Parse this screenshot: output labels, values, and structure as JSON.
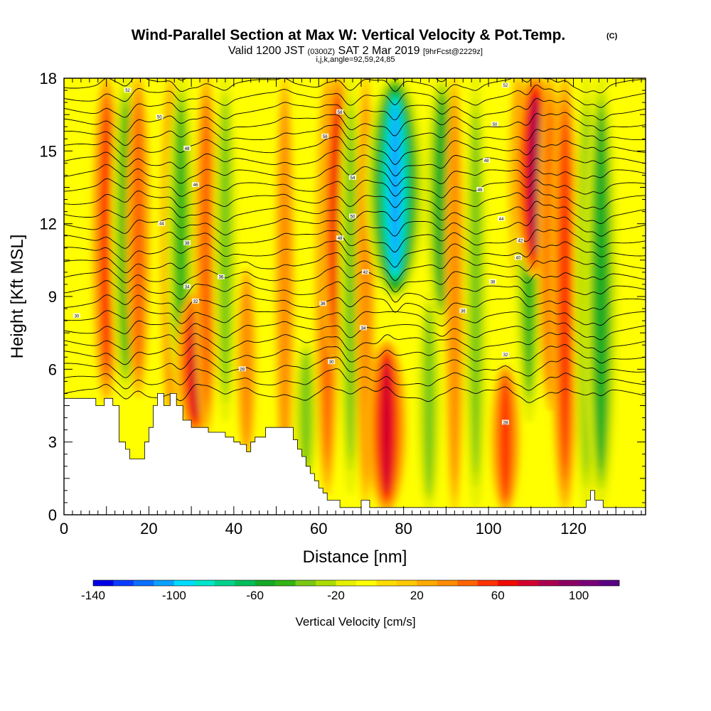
{
  "title": {
    "main": "Wind-Parallel Section at Max W: Vertical Velocity & Pot.Temp.",
    "main_mark": "(C)",
    "valid_prefix": "Valid 1200 JST",
    "valid_utc": "(0300Z)",
    "valid_date": "SAT 2 Mar 2019",
    "forecast": "[9hrFcst@2229z]",
    "indices": "i,j,k,angle=92,59,24,85"
  },
  "chart_data": {
    "type": "heatmap",
    "xlabel": "Distance [nm]",
    "ylabel": "Height [Kft MSL]",
    "xlim": [
      0,
      137
    ],
    "ylim": [
      0,
      18
    ],
    "x_ticks": [
      0,
      20,
      40,
      60,
      80,
      100,
      120
    ],
    "y_ticks": [
      0,
      3,
      6,
      9,
      12,
      15,
      18
    ],
    "grid": false,
    "colorbar": {
      "label": "Vertical Velocity [cm/s]",
      "range": [
        -140,
        120
      ],
      "step": 10,
      "tick_values": [
        -140,
        -100,
        -60,
        -20,
        20,
        60,
        100
      ],
      "tick_labels": [
        "-140",
        "-100",
        "-60",
        "-20",
        "20",
        "60",
        "100"
      ],
      "colors": [
        "#0000e6",
        "#0a3cff",
        "#0a6eff",
        "#0aa0ff",
        "#00dcff",
        "#00e6c8",
        "#00d28c",
        "#00be5a",
        "#14aa28",
        "#32b414",
        "#78c814",
        "#aadc00",
        "#e6f000",
        "#ffff00",
        "#ffdc00",
        "#ffc800",
        "#ffaa00",
        "#ff8c00",
        "#ff6400",
        "#ff3200",
        "#f00a00",
        "#d2002d",
        "#aa0050",
        "#8c0064",
        "#780078",
        "#5a0082"
      ]
    },
    "velocity_features": [
      {
        "x": 10,
        "z_low": 4.8,
        "z_high": 18,
        "w": 50
      },
      {
        "x": 14.5,
        "z_low": 5,
        "z_high": 18,
        "w": -55
      },
      {
        "x": 17.5,
        "z_low": 5,
        "z_high": 18,
        "w": 45
      },
      {
        "x": 25,
        "z_low": 3.8,
        "z_high": 18,
        "w": 30
      },
      {
        "x": 27.5,
        "z_low": 5,
        "z_high": 18,
        "w": -50
      },
      {
        "x": 31,
        "z_low": 3.5,
        "z_high": 9,
        "w": 70
      },
      {
        "x": 33.5,
        "z_low": 3.5,
        "z_high": 18,
        "w": 40
      },
      {
        "x": 38,
        "z_low": 4,
        "z_high": 18,
        "w": -45
      },
      {
        "x": 43,
        "z_low": 2.6,
        "z_high": 10,
        "w": 35
      },
      {
        "x": 52,
        "z_low": 1.5,
        "z_high": 18,
        "w": 30
      },
      {
        "x": 57,
        "z_low": 1.5,
        "z_high": 7,
        "w": -40
      },
      {
        "x": 62,
        "z_low": 1,
        "z_high": 18,
        "w": 45
      },
      {
        "x": 64.5,
        "z_low": 6,
        "z_high": 18,
        "w": 65
      },
      {
        "x": 67.5,
        "z_low": 1,
        "z_high": 18,
        "w": -45
      },
      {
        "x": 71,
        "z_low": 0.5,
        "z_high": 18,
        "w": 30
      },
      {
        "x": 76,
        "z_low": 0.3,
        "z_high": 7,
        "w": 70
      },
      {
        "x": 78,
        "z_low": 9,
        "z_high": 18,
        "w": -110
      },
      {
        "x": 86,
        "z_low": 0.3,
        "z_high": 9,
        "w": -45
      },
      {
        "x": 89,
        "z_low": 8,
        "z_high": 18,
        "w": -60
      },
      {
        "x": 92,
        "z_low": 0.3,
        "z_high": 18,
        "w": 35
      },
      {
        "x": 97,
        "z_low": 0.3,
        "z_high": 18,
        "w": -40
      },
      {
        "x": 104,
        "z_low": 0.3,
        "z_high": 6,
        "w": 55
      },
      {
        "x": 107,
        "z_low": 9,
        "z_high": 18,
        "w": 30
      },
      {
        "x": 109.5,
        "z_low": 4,
        "z_high": 18,
        "w": -50
      },
      {
        "x": 111,
        "z_low": 10,
        "z_high": 18,
        "w": 85
      },
      {
        "x": 114.5,
        "z_low": 4.5,
        "z_high": 18,
        "w": 45
      },
      {
        "x": 118,
        "z_low": 0.3,
        "z_high": 18,
        "w": 55
      },
      {
        "x": 123,
        "z_low": 0.3,
        "z_high": 18,
        "w": -40
      },
      {
        "x": 126.5,
        "z_low": 0.5,
        "z_high": 18,
        "w": -60
      }
    ],
    "terrain": [
      [
        0,
        4.8
      ],
      [
        7.5,
        4.8
      ],
      [
        7.5,
        4.5
      ],
      [
        9.5,
        4.5
      ],
      [
        9.5,
        4.8
      ],
      [
        11.5,
        4.8
      ],
      [
        11.5,
        4.5
      ],
      [
        13,
        4.5
      ],
      [
        13,
        3
      ],
      [
        14.5,
        3
      ],
      [
        14.5,
        2.7
      ],
      [
        15.5,
        2.7
      ],
      [
        15.5,
        2.3
      ],
      [
        19,
        2.3
      ],
      [
        19,
        3
      ],
      [
        20,
        3
      ],
      [
        20,
        3.6
      ],
      [
        21,
        3.6
      ],
      [
        21,
        4.5
      ],
      [
        22,
        4.5
      ],
      [
        22,
        5
      ],
      [
        23.5,
        5
      ],
      [
        23.5,
        4.5
      ],
      [
        25,
        4.5
      ],
      [
        25,
        5
      ],
      [
        26.5,
        5
      ],
      [
        26.5,
        4.5
      ],
      [
        28,
        4.5
      ],
      [
        28,
        3.9
      ],
      [
        30,
        3.9
      ],
      [
        30,
        3.6
      ],
      [
        34,
        3.6
      ],
      [
        34,
        3.4
      ],
      [
        38,
        3.4
      ],
      [
        38,
        3.2
      ],
      [
        40,
        3.2
      ],
      [
        40,
        3
      ],
      [
        41.5,
        3
      ],
      [
        41.5,
        2.9
      ],
      [
        43,
        2.9
      ],
      [
        43,
        2.6
      ],
      [
        44,
        2.6
      ],
      [
        44,
        3
      ],
      [
        45,
        3
      ],
      [
        45,
        3.2
      ],
      [
        47.5,
        3.2
      ],
      [
        47.5,
        3.6
      ],
      [
        54,
        3.6
      ],
      [
        54,
        3.1
      ],
      [
        55,
        3.1
      ],
      [
        55,
        2.7
      ],
      [
        56,
        2.7
      ],
      [
        56,
        2.4
      ],
      [
        57,
        2.4
      ],
      [
        57,
        2
      ],
      [
        58,
        2
      ],
      [
        58,
        1.7
      ],
      [
        59,
        1.7
      ],
      [
        59,
        1.4
      ],
      [
        60,
        1.4
      ],
      [
        60,
        1.1
      ],
      [
        61,
        1.1
      ],
      [
        61,
        0.9
      ],
      [
        62,
        0.9
      ],
      [
        62,
        0.6
      ],
      [
        65,
        0.6
      ],
      [
        65,
        0.3
      ],
      [
        70,
        0.3
      ],
      [
        70,
        0.6
      ],
      [
        72,
        0.6
      ],
      [
        72,
        0.3
      ],
      [
        123,
        0.3
      ],
      [
        123,
        0.6
      ],
      [
        124,
        0.6
      ],
      [
        124,
        1
      ],
      [
        125,
        1
      ],
      [
        125,
        0.6
      ],
      [
        127,
        0.6
      ],
      [
        127,
        0.3
      ],
      [
        137,
        0.3
      ]
    ],
    "theta_contour_levels": 26,
    "theta_contour_labels": [
      {
        "x": 15,
        "y": 17.5,
        "text": "52"
      },
      {
        "x": 22.5,
        "y": 16.4,
        "text": "50"
      },
      {
        "x": 29,
        "y": 15.1,
        "text": "48"
      },
      {
        "x": 31,
        "y": 13.6,
        "text": "46"
      },
      {
        "x": 23,
        "y": 12,
        "text": "44"
      },
      {
        "x": 29,
        "y": 11.2,
        "text": "38"
      },
      {
        "x": 37,
        "y": 9.8,
        "text": "36"
      },
      {
        "x": 29,
        "y": 9.4,
        "text": "34"
      },
      {
        "x": 31,
        "y": 8.8,
        "text": "32"
      },
      {
        "x": 3,
        "y": 8.2,
        "text": "30"
      },
      {
        "x": 42,
        "y": 6,
        "text": "28"
      },
      {
        "x": 61.5,
        "y": 15.6,
        "text": "56"
      },
      {
        "x": 65,
        "y": 16.6,
        "text": "58"
      },
      {
        "x": 68,
        "y": 13.9,
        "text": "54"
      },
      {
        "x": 68,
        "y": 12.3,
        "text": "50"
      },
      {
        "x": 65,
        "y": 11.4,
        "text": "48"
      },
      {
        "x": 71,
        "y": 10,
        "text": "42"
      },
      {
        "x": 61,
        "y": 8.7,
        "text": "36"
      },
      {
        "x": 70.5,
        "y": 7.7,
        "text": "34"
      },
      {
        "x": 63,
        "y": 6.3,
        "text": "30"
      },
      {
        "x": 104,
        "y": 17.7,
        "text": "52"
      },
      {
        "x": 101.5,
        "y": 16.1,
        "text": "50"
      },
      {
        "x": 99.5,
        "y": 14.6,
        "text": "48"
      },
      {
        "x": 98,
        "y": 13.4,
        "text": "46"
      },
      {
        "x": 103,
        "y": 12.2,
        "text": "44"
      },
      {
        "x": 107.5,
        "y": 11.3,
        "text": "42"
      },
      {
        "x": 107,
        "y": 10.6,
        "text": "40"
      },
      {
        "x": 101,
        "y": 9.6,
        "text": "38"
      },
      {
        "x": 94,
        "y": 8.4,
        "text": "36"
      },
      {
        "x": 104,
        "y": 6.6,
        "text": "32"
      },
      {
        "x": 104,
        "y": 3.8,
        "text": "28"
      }
    ]
  }
}
